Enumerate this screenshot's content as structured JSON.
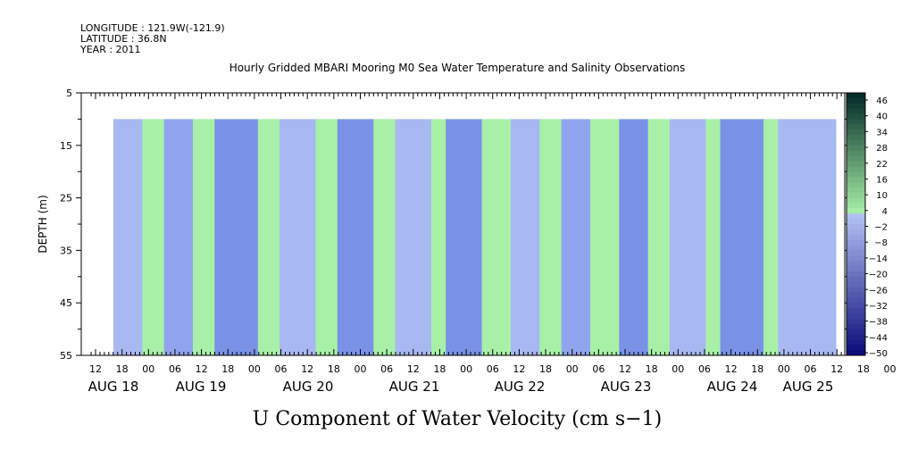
{
  "header": {
    "longitude": "LONGITUDE : 121.9W(-121.9)",
    "latitude": "LATITUDE : 36.8N",
    "year": "YEAR : 2011"
  },
  "chart_data": {
    "type": "heatmap",
    "title": "Hourly Gridded MBARI Mooring M0 Sea Water Temperature and Salinity Observations",
    "xlabel": "U Component of Water Velocity (cm s−1)",
    "ylabel": "DEPTH (m)",
    "y_ticks": [
      "5",
      "15",
      "25",
      "35",
      "45",
      "55"
    ],
    "ylim": [
      55,
      5
    ],
    "x_hour_ticks": [
      "12",
      "18",
      "00",
      "06",
      "12",
      "18",
      "00",
      "06",
      "12",
      "18",
      "00",
      "06",
      "12",
      "18",
      "00",
      "06",
      "12",
      "18",
      "00",
      "06",
      "12",
      "18",
      "00",
      "06",
      "12",
      "18",
      "00",
      "06",
      "12",
      "18",
      "00",
      "06"
    ],
    "x_day_ticks": [
      "AUG 18",
      "AUG 19",
      "AUG 20",
      "AUG 21",
      "AUG 22",
      "AUG 23",
      "AUG 24",
      "AUG 25"
    ],
    "data_depth_range": [
      10,
      55
    ],
    "colorbar_labels": [
      "46",
      "40",
      "34",
      "28",
      "22",
      "16",
      "10",
      "4",
      "−2",
      "−8",
      "−14",
      "−20",
      "−26",
      "−32",
      "−38",
      "−44",
      "−50"
    ],
    "colorbar_range": [
      -50,
      50
    ],
    "colors": {
      "green_light": "#a8f0a8",
      "blue_light": "#a8b8f0",
      "blue_mid": "#8fa4ec",
      "blue_dark": "#7a92e6"
    },
    "data_bands": [
      {
        "x0": 0,
        "x1": 0.04,
        "value": -8
      },
      {
        "x0": 0.04,
        "x1": 0.07,
        "value": 4
      },
      {
        "x0": 0.07,
        "x1": 0.11,
        "value": -14
      },
      {
        "x0": 0.11,
        "x1": 0.14,
        "value": 4
      },
      {
        "x0": 0.14,
        "x1": 0.2,
        "value": -20
      },
      {
        "x0": 0.2,
        "x1": 0.23,
        "value": 4
      },
      {
        "x0": 0.23,
        "x1": 0.28,
        "value": -8
      },
      {
        "x0": 0.28,
        "x1": 0.31,
        "value": 4
      },
      {
        "x0": 0.31,
        "x1": 0.36,
        "value": -20
      },
      {
        "x0": 0.36,
        "x1": 0.39,
        "value": 4
      },
      {
        "x0": 0.39,
        "x1": 0.44,
        "value": -8
      },
      {
        "x0": 0.44,
        "x1": 0.46,
        "value": 4
      },
      {
        "x0": 0.46,
        "x1": 0.51,
        "value": -20
      },
      {
        "x0": 0.51,
        "x1": 0.55,
        "value": 4
      },
      {
        "x0": 0.55,
        "x1": 0.59,
        "value": -8
      },
      {
        "x0": 0.59,
        "x1": 0.62,
        "value": 4
      },
      {
        "x0": 0.62,
        "x1": 0.66,
        "value": -14
      },
      {
        "x0": 0.66,
        "x1": 0.7,
        "value": 4
      },
      {
        "x0": 0.7,
        "x1": 0.74,
        "value": -20
      },
      {
        "x0": 0.74,
        "x1": 0.77,
        "value": 4
      },
      {
        "x0": 0.77,
        "x1": 0.82,
        "value": -8
      },
      {
        "x0": 0.82,
        "x1": 0.84,
        "value": 4
      },
      {
        "x0": 0.84,
        "x1": 0.9,
        "value": -20
      },
      {
        "x0": 0.9,
        "x1": 0.92,
        "value": 4
      },
      {
        "x0": 0.92,
        "x1": 1.0,
        "value": -8
      }
    ]
  }
}
